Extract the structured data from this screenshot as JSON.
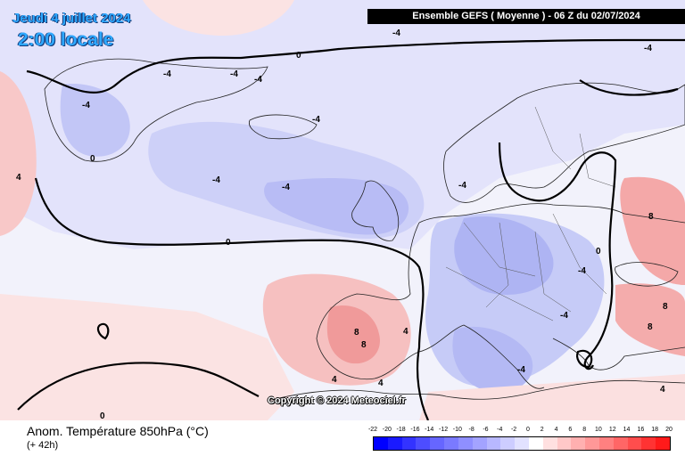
{
  "header": {
    "date": "Jeudi 4 juillet 2024",
    "time": "2:00 locale",
    "run_info": "Ensemble GEFS  ( Moyenne )  -  06 Z du 02/07/2024"
  },
  "map": {
    "copyright": "Copyright © 2024 Meteociel.fr",
    "contour_labels": [
      "-4",
      "-4",
      "-4",
      "-4",
      "-4",
      "-4",
      "-4",
      "-4",
      "-4",
      "-4",
      "-4",
      "-4",
      "-4",
      "0",
      "0",
      "0",
      "0",
      "0",
      "4",
      "4",
      "4",
      "4",
      "8",
      "8",
      "8",
      "8",
      "8",
      "4"
    ]
  },
  "footer": {
    "parameter": "Anom. Température 850hPa (°C)",
    "lead_time": "(+ 42h)"
  },
  "color_scale": {
    "ticks": [
      "-22",
      "-20",
      "-18",
      "-16",
      "-14",
      "-12",
      "-10",
      "-8",
      "-6",
      "-4",
      "-2",
      "0",
      "2",
      "4",
      "6",
      "8",
      "10",
      "12",
      "14",
      "16",
      "18",
      "20"
    ],
    "colors": [
      "#0000ff",
      "#1a1aff",
      "#3333ff",
      "#4d4dff",
      "#6666ff",
      "#7a7aff",
      "#8f8fff",
      "#a3a3ff",
      "#b8b8ff",
      "#cdcdff",
      "#e2e2ff",
      "#ffffff",
      "#ffe0e0",
      "#ffc8c8",
      "#ffb0b0",
      "#ff9898",
      "#ff8080",
      "#ff6666",
      "#ff4d4d",
      "#ff3333",
      "#ff1a1a"
    ]
  }
}
